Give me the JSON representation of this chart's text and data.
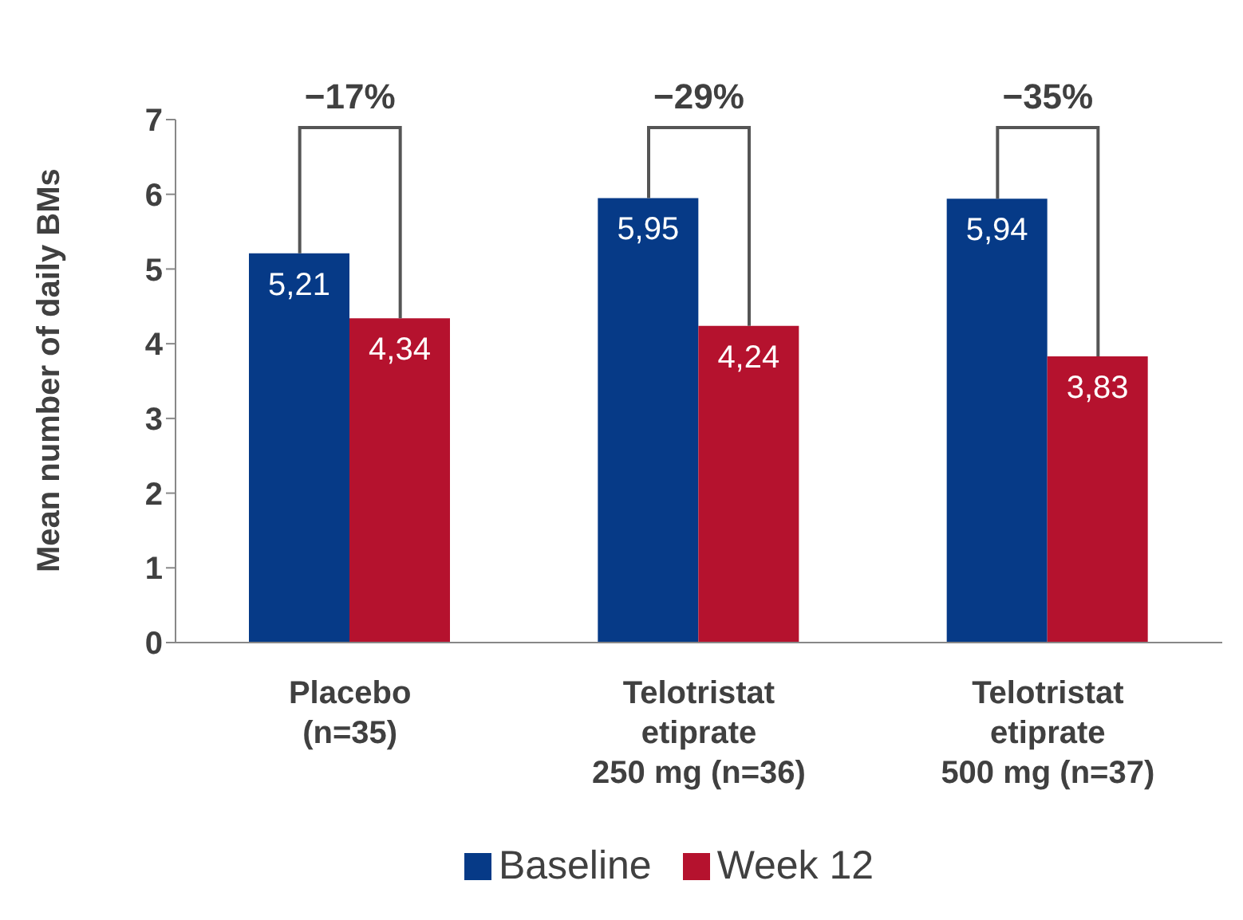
{
  "chart_data": {
    "type": "bar",
    "ylabel": "Mean number of daily BMs",
    "categories": [
      "Placebo\n(n=35)",
      "Telotristat\netiprate\n250 mg (n=36)",
      "Telotristat\netiprate\n500 mg (n=37)"
    ],
    "series": [
      {
        "name": "Baseline",
        "color": "#063a87",
        "values": [
          5.21,
          5.95,
          5.94
        ],
        "value_labels": [
          "5,21",
          "5,95",
          "5,94"
        ]
      },
      {
        "name": "Week 12",
        "color": "#b5122e",
        "values": [
          4.34,
          4.24,
          3.83
        ],
        "value_labels": [
          "4,34",
          "4,24",
          "3,83"
        ]
      }
    ],
    "ylim": [
      0,
      7
    ],
    "yticks": [
      0,
      1,
      2,
      3,
      4,
      5,
      6,
      7
    ],
    "grid": false,
    "legend": "bottom",
    "annotations": [
      "−17%",
      "−29%",
      "−35%"
    ]
  }
}
